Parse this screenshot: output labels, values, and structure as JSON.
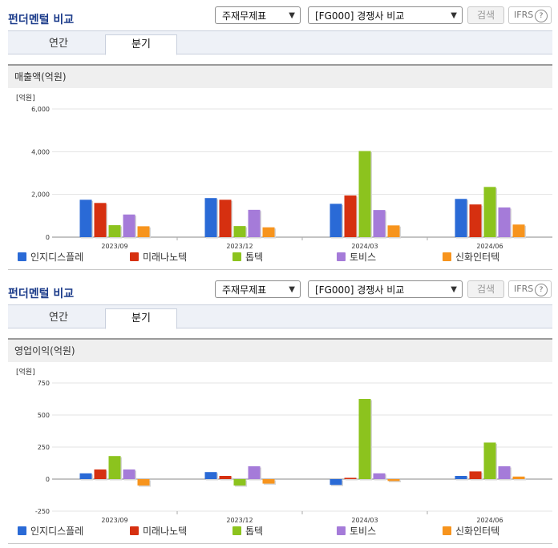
{
  "panels": [
    {
      "title": "펀더멘털 비교",
      "select1": "주재무제표",
      "select2": "[FG000] 경쟁사 비교",
      "search_label": "검색",
      "ifrs_label": "IFRS",
      "ifrs_help": "?",
      "tabs": [
        "연간",
        "분기"
      ],
      "active_tab": "분기",
      "metric_title": "매출액(억원)",
      "chart_data": {
        "type": "bar",
        "unit": "[억원]",
        "categories": [
          "2023/09",
          "2023/12",
          "2024/03",
          "2024/06"
        ],
        "ylim": [
          0,
          6000
        ],
        "yticks": [
          0,
          2000,
          4000,
          6000
        ],
        "ytick_labels": [
          "0",
          "2,000",
          "4,000",
          "6,000"
        ],
        "series": [
          {
            "name": "인지디스플레",
            "color": "#2a6ad6",
            "values": [
              1750,
              1830,
              1560,
              1790
            ]
          },
          {
            "name": "미래나노텍",
            "color": "#d63010",
            "values": [
              1600,
              1750,
              1950,
              1530
            ]
          },
          {
            "name": "톱텍",
            "color": "#8cc31e",
            "values": [
              560,
              520,
              4030,
              2350
            ]
          },
          {
            "name": "토비스",
            "color": "#a57bd9",
            "values": [
              1060,
              1280,
              1270,
              1390
            ]
          },
          {
            "name": "신화인터텍",
            "color": "#f7941d",
            "values": [
              510,
              460,
              550,
              590
            ]
          }
        ]
      }
    },
    {
      "title": "펀더멘털 비교",
      "select1": "주재무제표",
      "select2": "[FG000] 경쟁사 비교",
      "search_label": "검색",
      "ifrs_label": "IFRS",
      "ifrs_help": "?",
      "tabs": [
        "연간",
        "분기"
      ],
      "active_tab": "분기",
      "metric_title": "영업이익(억원)",
      "chart_data": {
        "type": "bar",
        "unit": "[억원]",
        "categories": [
          "2023/09",
          "2023/12",
          "2024/03",
          "2024/06"
        ],
        "ylim": [
          -250,
          750
        ],
        "yticks": [
          -250,
          0,
          250,
          500,
          750
        ],
        "ytick_labels": [
          "-250",
          "0",
          "250",
          "500",
          "750"
        ],
        "series": [
          {
            "name": "인지디스플레",
            "color": "#2a6ad6",
            "values": [
              45,
              55,
              -45,
              25
            ]
          },
          {
            "name": "미래나노텍",
            "color": "#d63010",
            "values": [
              75,
              25,
              10,
              60
            ]
          },
          {
            "name": "톱텍",
            "color": "#8cc31e",
            "values": [
              180,
              -50,
              625,
              285
            ]
          },
          {
            "name": "토비스",
            "color": "#a57bd9",
            "values": [
              75,
              100,
              45,
              100
            ]
          },
          {
            "name": "신화인터텍",
            "color": "#f7941d",
            "values": [
              -50,
              -35,
              -15,
              20
            ]
          }
        ]
      }
    }
  ]
}
